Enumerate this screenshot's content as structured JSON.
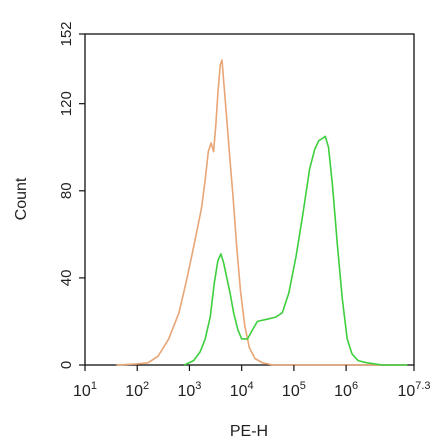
{
  "chart_data": {
    "type": "line",
    "title": "",
    "xlabel": "PE-H",
    "ylabel": "Count",
    "x_scale": "log10",
    "xlim": [
      10,
      19952623
    ],
    "ylim": [
      0,
      152
    ],
    "x_ticks": [
      {
        "value": 10,
        "base": "10",
        "exp": "1"
      },
      {
        "value": 100,
        "base": "10",
        "exp": "2"
      },
      {
        "value": 1000,
        "base": "10",
        "exp": "3"
      },
      {
        "value": 10000,
        "base": "10",
        "exp": "4"
      },
      {
        "value": 100000,
        "base": "10",
        "exp": "5"
      },
      {
        "value": 1000000,
        "base": "10",
        "exp": "6"
      },
      {
        "value": 19952623,
        "base": "10",
        "exp": "7.3"
      }
    ],
    "y_ticks": [
      {
        "value": 0,
        "label": "0"
      },
      {
        "value": 40,
        "label": "40"
      },
      {
        "value": 80,
        "label": "80"
      },
      {
        "value": 120,
        "label": "120"
      },
      {
        "value": 152,
        "label": "152"
      }
    ],
    "grid": false,
    "series": [
      {
        "color": "#e8a575",
        "points": [
          [
            40,
            0
          ],
          [
            100,
            0.5
          ],
          [
            160,
            1
          ],
          [
            250,
            4
          ],
          [
            400,
            12
          ],
          [
            630,
            24
          ],
          [
            900,
            40
          ],
          [
            1150,
            52
          ],
          [
            1400,
            62
          ],
          [
            1700,
            72
          ],
          [
            2000,
            85
          ],
          [
            2300,
            98
          ],
          [
            2600,
            102
          ],
          [
            2900,
            98
          ],
          [
            3200,
            110
          ],
          [
            3500,
            125
          ],
          [
            3900,
            138
          ],
          [
            4200,
            140
          ],
          [
            4600,
            128
          ],
          [
            5100,
            115
          ],
          [
            5800,
            98
          ],
          [
            6800,
            78
          ],
          [
            8000,
            55
          ],
          [
            9500,
            34
          ],
          [
            11500,
            18
          ],
          [
            14000,
            8
          ],
          [
            18000,
            3
          ],
          [
            25000,
            1
          ],
          [
            40000,
            0
          ],
          [
            1000000,
            0
          ],
          [
            15000000,
            0
          ]
        ]
      },
      {
        "color": "#3ecf3e",
        "points": [
          [
            800,
            0
          ],
          [
            1200,
            2
          ],
          [
            1600,
            6
          ],
          [
            2000,
            12
          ],
          [
            2500,
            22
          ],
          [
            3000,
            38
          ],
          [
            3500,
            48
          ],
          [
            4000,
            51
          ],
          [
            4500,
            47
          ],
          [
            5200,
            40
          ],
          [
            6000,
            33
          ],
          [
            7000,
            24
          ],
          [
            8500,
            16
          ],
          [
            10000,
            12
          ],
          [
            13000,
            12
          ],
          [
            16000,
            16
          ],
          [
            20000,
            20
          ],
          [
            30000,
            21
          ],
          [
            45000,
            22
          ],
          [
            60000,
            24
          ],
          [
            80000,
            33
          ],
          [
            110000,
            50
          ],
          [
            150000,
            70
          ],
          [
            200000,
            90
          ],
          [
            250000,
            99
          ],
          [
            300000,
            103
          ],
          [
            350000,
            104
          ],
          [
            400000,
            105
          ],
          [
            460000,
            100
          ],
          [
            550000,
            82
          ],
          [
            680000,
            55
          ],
          [
            850000,
            30
          ],
          [
            1050000,
            12
          ],
          [
            1300000,
            5
          ],
          [
            1700000,
            2
          ],
          [
            2500000,
            1
          ],
          [
            5000000,
            0
          ],
          [
            15000000,
            0
          ]
        ]
      }
    ]
  }
}
